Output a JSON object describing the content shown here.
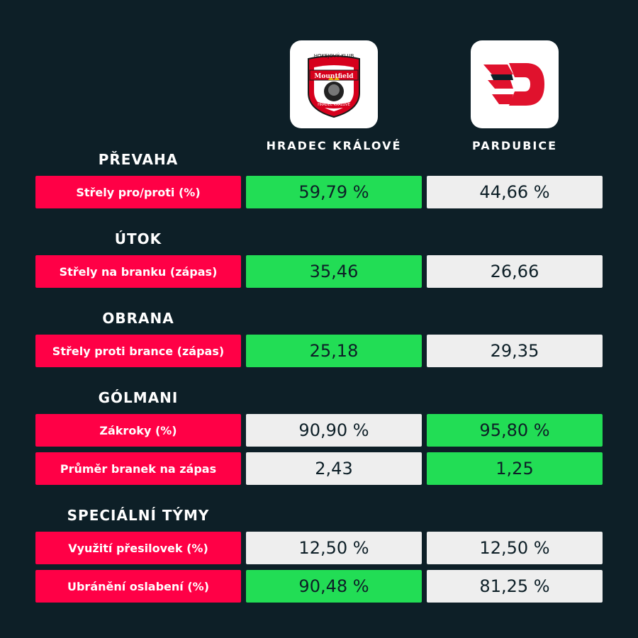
{
  "colors": {
    "background": "#0d1f27",
    "label": "#ff0046",
    "best": "#22dd55",
    "neutral": "#eeeeee"
  },
  "teams": [
    {
      "name": "HRADEC KRÁLOVÉ",
      "logo_text_top": "HOKEJOVÝ KLUB",
      "logo_text_brand": "Mountfield",
      "logo_text_bottom": "HRADEC KRÁLOVÉ"
    },
    {
      "name": "PARDUBICE"
    }
  ],
  "sections": [
    {
      "title": "PŘEVAHA",
      "rows": [
        {
          "label": "Střely pro/proti (%)",
          "values": [
            "59,79 %",
            "44,66 %"
          ],
          "best": 0
        }
      ]
    },
    {
      "title": "ÚTOK",
      "rows": [
        {
          "label": "Střely na branku (zápas)",
          "values": [
            "35,46",
            "26,66"
          ],
          "best": 0
        }
      ]
    },
    {
      "title": "OBRANA",
      "rows": [
        {
          "label": "Střely proti brance (zápas)",
          "values": [
            "25,18",
            "29,35"
          ],
          "best": 0
        }
      ]
    },
    {
      "title": "GÓLMANI",
      "rows": [
        {
          "label": "Zákroky (%)",
          "values": [
            "90,90 %",
            "95,80 %"
          ],
          "best": 1
        },
        {
          "label": "Průměr branek na zápas",
          "values": [
            "2,43",
            "1,25"
          ],
          "best": 1
        }
      ]
    },
    {
      "title": "SPECIÁLNÍ TÝMY",
      "rows": [
        {
          "label": "Využití přesilovek (%)",
          "values": [
            "12,50 %",
            "12,50 %"
          ],
          "best": null
        },
        {
          "label": "Ubránění oslabení (%)",
          "values": [
            "90,48 %",
            "81,25 %"
          ],
          "best": 0
        }
      ]
    }
  ]
}
